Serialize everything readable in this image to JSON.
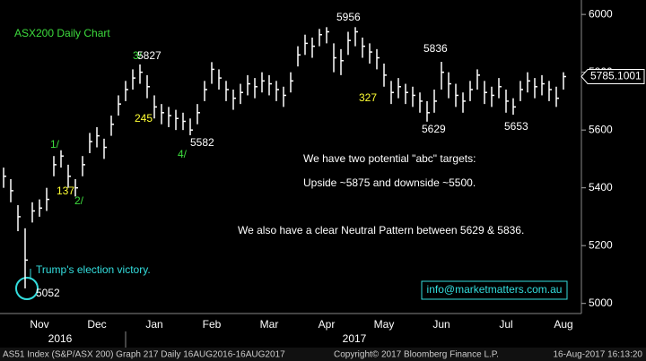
{
  "chart_data": {
    "type": "ohlc",
    "title": "ASX200 Daily Chart",
    "categories": [
      null,
      null,
      null,
      null,
      null,
      "Nov",
      null,
      null,
      null,
      null,
      null,
      null,
      null,
      "Dec",
      null,
      null,
      null,
      null,
      null,
      null,
      null,
      "Jan",
      null,
      null,
      null,
      null,
      null,
      null,
      null,
      "Feb",
      null,
      null,
      null,
      null,
      null,
      null,
      null,
      "Mar",
      null,
      null,
      null,
      null,
      null,
      null,
      null,
      "Apr",
      null,
      null,
      null,
      null,
      null,
      null,
      null,
      "May",
      null,
      null,
      null,
      null,
      null,
      null,
      null,
      "Jun",
      null,
      null,
      null,
      null,
      null,
      null,
      null,
      null,
      "Jul",
      null,
      null,
      null,
      null,
      null,
      null,
      null,
      "Aug"
    ],
    "years": [
      "2016",
      "2017"
    ],
    "series": [
      {
        "name": "AS51 Index",
        "color": "#ffffff",
        "high": [
          5470,
          5430,
          5340,
          5260,
          5350,
          5360,
          5400,
          5510,
          5530,
          5480,
          5430,
          5510,
          5590,
          5610,
          5570,
          5650,
          5720,
          5770,
          5810,
          5827,
          5790,
          5720,
          5690,
          5680,
          5670,
          5660,
          5640,
          5690,
          5770,
          5835,
          5810,
          5770,
          5740,
          5760,
          5790,
          5780,
          5800,
          5790,
          5770,
          5750,
          5800,
          5890,
          5930,
          5920,
          5950,
          5956,
          5900,
          5880,
          5940,
          5956,
          5920,
          5900,
          5880,
          5830,
          5770,
          5780,
          5760,
          5750,
          5730,
          5700,
          5740,
          5836,
          5800,
          5760,
          5730,
          5770,
          5810,
          5770,
          5750,
          5780,
          5740,
          5710,
          5770,
          5800,
          5780,
          5790,
          5770,
          5750,
          5800
        ],
        "low": [
          5400,
          5350,
          5250,
          5052,
          5280,
          5300,
          5320,
          5440,
          5470,
          5400,
          5370,
          5440,
          5520,
          5540,
          5500,
          5580,
          5650,
          5700,
          5740,
          5760,
          5710,
          5640,
          5620,
          5610,
          5600,
          5600,
          5582,
          5620,
          5700,
          5760,
          5740,
          5700,
          5670,
          5690,
          5720,
          5710,
          5730,
          5720,
          5700,
          5680,
          5730,
          5820,
          5860,
          5850,
          5890,
          5900,
          5800,
          5790,
          5860,
          5890,
          5850,
          5830,
          5810,
          5750,
          5690,
          5710,
          5690,
          5680,
          5660,
          5629,
          5660,
          5740,
          5710,
          5680,
          5660,
          5700,
          5740,
          5690,
          5680,
          5710,
          5660,
          5653,
          5700,
          5730,
          5710,
          5720,
          5700,
          5680,
          5740
        ],
        "close": [
          5440,
          5390,
          5300,
          5150,
          5320,
          5330,
          5360,
          5480,
          5510,
          5440,
          5400,
          5480,
          5560,
          5580,
          5540,
          5620,
          5690,
          5740,
          5780,
          5800,
          5750,
          5680,
          5660,
          5650,
          5640,
          5630,
          5600,
          5660,
          5740,
          5810,
          5780,
          5740,
          5710,
          5730,
          5760,
          5750,
          5770,
          5760,
          5740,
          5720,
          5770,
          5860,
          5900,
          5890,
          5930,
          5940,
          5850,
          5840,
          5910,
          5940,
          5890,
          5870,
          5850,
          5790,
          5730,
          5750,
          5730,
          5720,
          5700,
          5660,
          5700,
          5800,
          5760,
          5720,
          5700,
          5740,
          5790,
          5730,
          5720,
          5750,
          5700,
          5680,
          5740,
          5770,
          5750,
          5760,
          5740,
          5710,
          5785
        ]
      }
    ],
    "last_price": 5785.1001,
    "ylim": [
      4965,
      6050
    ],
    "yticks": [
      5000,
      5200,
      5400,
      5600,
      5800,
      6000
    ],
    "grid": false,
    "annotations": [
      {
        "text": "3/",
        "color": "#3ddc3d"
      },
      {
        "text": "5827",
        "color": "#ffffff"
      },
      {
        "text": "245",
        "color": "#ffff33"
      },
      {
        "text": "4/",
        "color": "#3ddc3d"
      },
      {
        "text": "5582",
        "color": "#ffffff"
      },
      {
        "text": "1/",
        "color": "#3ddc3d"
      },
      {
        "text": "137",
        "color": "#ffff33"
      },
      {
        "text": "2/",
        "color": "#3ddc3d"
      },
      {
        "text": "5956",
        "color": "#ffffff"
      },
      {
        "text": "5836",
        "color": "#ffffff"
      },
      {
        "text": "327",
        "color": "#ffff33"
      },
      {
        "text": "5629",
        "color": "#ffffff"
      },
      {
        "text": "5653",
        "color": "#ffffff"
      },
      {
        "text": "5052",
        "color": "#ffffff"
      },
      {
        "text": "Trump's election victory.",
        "color": "#33dddd"
      },
      {
        "text": "We have two potential \"abc\" targets:",
        "color": "#ffffff"
      },
      {
        "text": "Upside ~5875 and downside ~5500.",
        "color": "#ffffff"
      },
      {
        "text": "We also have a clear Neutral Pattern between 5629 & 5836.",
        "color": "#ffffff"
      }
    ],
    "website": "info@marketmatters.com.au",
    "footer": [
      "AS51 Index (S&P/ASX 200) Graph 217  Daily 16AUG2016-16AUG2017",
      "Copyright© 2017 Bloomberg Finance L.P.",
      "16-Aug-2017 16:13:20"
    ]
  }
}
